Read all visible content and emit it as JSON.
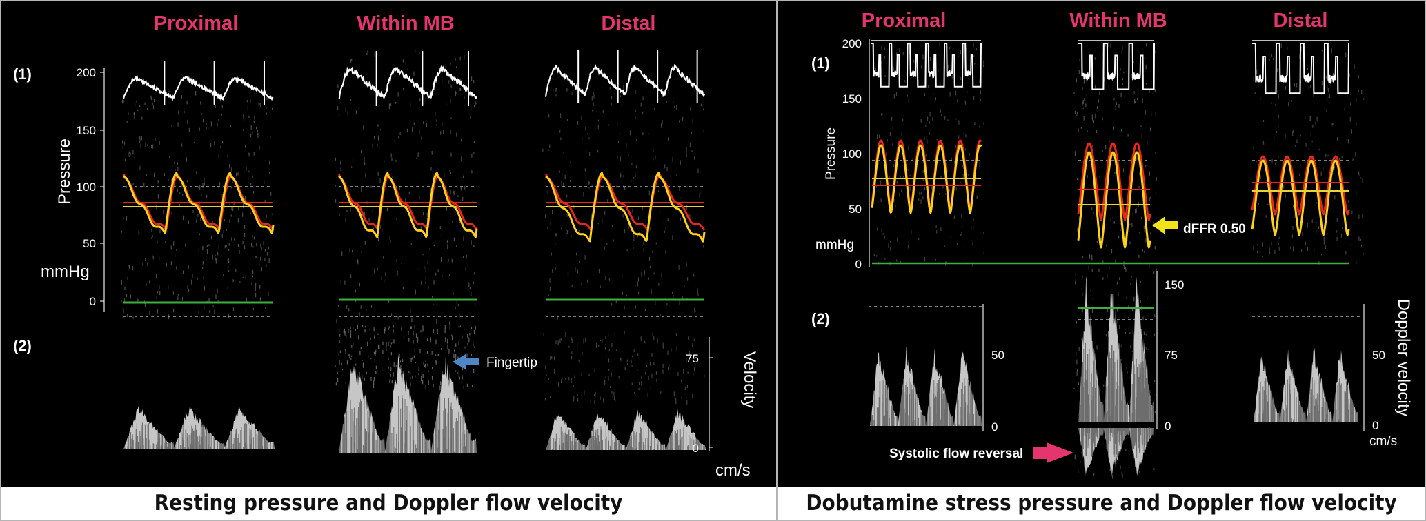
{
  "panels": [
    {
      "caption": "Resting pressure and Doppler flow velocity",
      "segments": [
        "Proximal",
        "Within MB",
        "Distal"
      ],
      "row_labels": [
        "(1)",
        "(2)"
      ],
      "pressure_axis": {
        "label": "Pressure",
        "unit": "mmHg",
        "ticks": [
          "200",
          "150",
          "100",
          "50",
          "0"
        ]
      },
      "velocity_axis": {
        "label": "Velocity",
        "unit": "cm/s",
        "ticks": [
          "75",
          "0"
        ]
      },
      "annotations": [
        {
          "text": "Fingertip",
          "arrow_color": "#4f86c6"
        }
      ]
    },
    {
      "caption": "Dobutamine stress pressure and Doppler flow velocity",
      "segments": [
        "Proximal",
        "Within MB",
        "Distal"
      ],
      "row_labels": [
        "(1)",
        "(2)"
      ],
      "pressure_axis": {
        "label": "Pressure",
        "unit": "mmHg",
        "ticks": [
          "200",
          "150",
          "100",
          "50",
          "0"
        ]
      },
      "velocity_axis": {
        "label": "Doppler velocity",
        "unit": "cm/s",
        "ticks_proximal": [
          "50",
          "0"
        ],
        "ticks_mb": [
          "150",
          "75",
          "0"
        ],
        "ticks_distal": [
          "50",
          "0"
        ]
      },
      "annotations": [
        {
          "text": "dFFR 0.50",
          "arrow_color": "#f2e21b"
        },
        {
          "text": "Systolic flow reversal",
          "arrow_color": "#e4356f"
        }
      ]
    }
  ],
  "colors": {
    "segment_title": "#e4356f",
    "aortic": "#ffd21a",
    "distal": "#e8261e",
    "mean": "#e8d23a",
    "baseline": "#3fae3f"
  }
}
